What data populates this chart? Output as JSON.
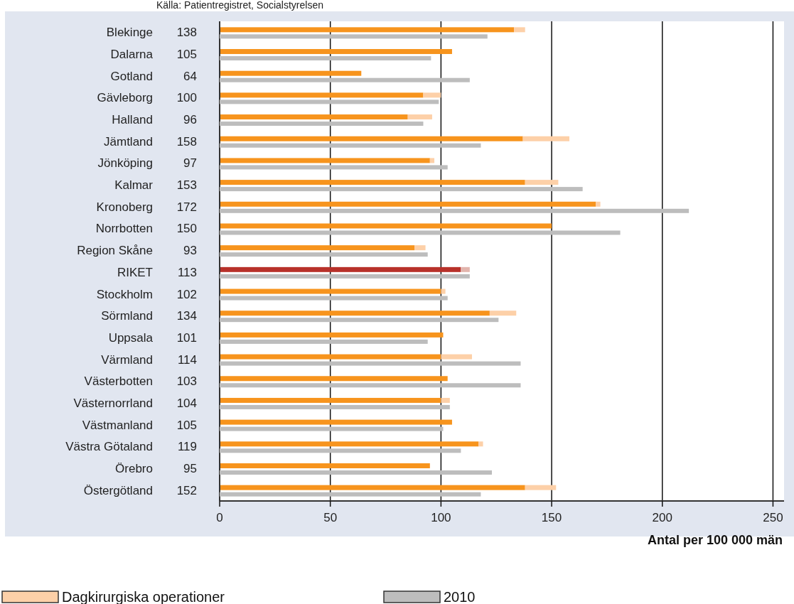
{
  "chart_data": [
    {
      "type": "bar",
      "orientation": "horizontal",
      "stacked": true,
      "categories": [
        "Blekinge",
        "Dalarna",
        "Gotland",
        "Gävleborg",
        "Halland",
        "Jämtland",
        "Jönköping",
        "Kalmar",
        "Kronoberg",
        "Norrbotten",
        "Region Skåne",
        "RIKET",
        "Stockholm",
        "Sörmland",
        "Uppsala",
        "Värmland",
        "Västerbotten",
        "Västernorrland",
        "Västmanland",
        "Västra Götaland",
        "Örebro",
        "Östergötland"
      ],
      "series": [
        {
          "colors": [
            "#f7941d",
            "#f7941d",
            "#f7941d",
            "#f7941d",
            "#f7941d",
            "#f7941d",
            "#f7941d",
            "#f7941d",
            "#f7941d",
            "#f7941d",
            "#f7941d",
            "#b8312a",
            "#f7941d",
            "#f7941d",
            "#f7941d",
            "#f7941d",
            "#f7941d",
            "#f7941d",
            "#f7941d",
            "#f7941d",
            "#f7941d",
            "#f7941d"
          ],
          "values": [
            133,
            105,
            64,
            92,
            85,
            137,
            95,
            138,
            170,
            150,
            88,
            109,
            100,
            122,
            101,
            100,
            103,
            100,
            105,
            117,
            95,
            138
          ]
        },
        {
          "name": "Dagkirurgiska operationer",
          "color": "#fdd0a8",
          "colors": [
            "#fdd0a8",
            "#fdd0a8",
            "#fdd0a8",
            "#fdd0a8",
            "#fdd0a8",
            "#fdd0a8",
            "#fdd0a8",
            "#fdd0a8",
            "#fdd0a8",
            "#fdd0a8",
            "#fdd0a8",
            "#e2b5ad",
            "#fdd0a8",
            "#fdd0a8",
            "#fdd0a8",
            "#fdd0a8",
            "#fdd0a8",
            "#fdd0a8",
            "#fdd0a8",
            "#fdd0a8",
            "#fdd0a8",
            "#fdd0a8"
          ],
          "values": [
            5,
            0,
            0,
            8,
            11,
            21,
            2,
            15,
            2,
            0,
            5,
            4,
            2,
            12,
            0,
            14,
            0,
            4,
            0,
            2,
            0,
            14
          ]
        }
      ],
      "totals": [
        "138",
        "105",
        "64",
        "100",
        "96",
        "158",
        "97",
        "153",
        "172",
        "150",
        "93",
        "113",
        "102",
        "134",
        "101",
        "114",
        "103",
        "104",
        "105",
        "119",
        "95",
        "152"
      ],
      "xlim": [
        0,
        255
      ],
      "xticks": [
        0,
        50,
        100,
        150,
        200,
        250
      ],
      "grid": "x",
      "xlabel": "Antal per 100 000 män",
      "legend": "bottom",
      "annotations": [
        "Källa: Patientregistret, Socialstyrelsen"
      ]
    },
    {
      "type": "bar",
      "orientation": "horizontal",
      "tick_labels": false,
      "categories": [
        null,
        null,
        null,
        null,
        null,
        null,
        null,
        null,
        null,
        null,
        null,
        null,
        null,
        null,
        null,
        null,
        null,
        null,
        null,
        null,
        null,
        null
      ],
      "series": [
        {
          "name": "2010",
          "color": "#bdbdbd",
          "values": [
            121,
            95.5,
            113,
            99,
            92,
            118,
            103,
            164,
            212,
            181,
            94,
            113,
            103,
            126,
            94,
            136,
            136,
            104,
            101,
            109,
            123,
            118
          ]
        }
      ],
      "xlim": [
        0,
        255
      ],
      "legend": "bottom"
    }
  ]
}
